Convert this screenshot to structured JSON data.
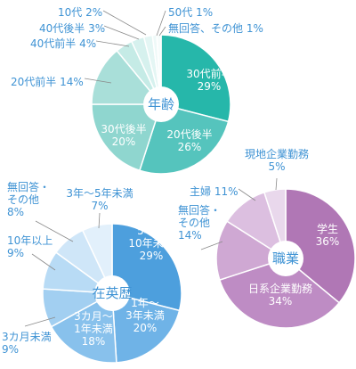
{
  "colors": {
    "text_label": "#3f93d4",
    "text_in_slice": "#ffffff",
    "leader_line": "#8a8a8a",
    "center_fill": "#ffffff"
  },
  "chart_data": [
    {
      "type": "pie",
      "title": "年齢",
      "slices": [
        {
          "label": "30代前半",
          "value": 29,
          "color": "#26b7aa",
          "label_position": "inside",
          "label_lines": [
            "30代前半",
            "29%"
          ]
        },
        {
          "label": "20代後半",
          "value": 26,
          "color": "#55c4bd",
          "label_position": "inside",
          "label_lines": [
            "20代後半",
            "26%"
          ]
        },
        {
          "label": "30代後半",
          "value": 20,
          "color": "#8fd6cf",
          "label_position": "inside",
          "label_lines": [
            "30代後半",
            "20%"
          ]
        },
        {
          "label": "20代前半",
          "value": 14,
          "color": "#a9dfd9",
          "label_position": "outside",
          "label_lines": [
            "20代前半 14%"
          ]
        },
        {
          "label": "40代前半",
          "value": 4,
          "color": "#c5ebe6",
          "label_position": "outside",
          "label_lines": [
            "40代前半 4%"
          ]
        },
        {
          "label": "40代後半",
          "value": 3,
          "color": "#d6f1ee",
          "label_position": "outside",
          "label_lines": [
            "40代後半 3%"
          ]
        },
        {
          "label": "10代",
          "value": 2,
          "color": "#e4f6f4",
          "label_position": "outside",
          "label_lines": [
            "10代 2%"
          ]
        },
        {
          "label": "50代",
          "value": 1,
          "color": "#eef9f8",
          "label_position": "outside",
          "label_lines": [
            "50代 1%"
          ]
        },
        {
          "label": "無回答、その他",
          "value": 1,
          "color": "#f6fcfb",
          "label_position": "outside",
          "label_lines": [
            "無回答、その他 1%"
          ]
        }
      ]
    },
    {
      "type": "pie",
      "title": "在英歴",
      "slices": [
        {
          "label": "5年～10年未満",
          "value": 29,
          "color": "#4d9fdd",
          "label_position": "inside",
          "label_lines": [
            "5年～",
            "10年未満",
            "29%"
          ]
        },
        {
          "label": "1年～3年未満",
          "value": 20,
          "color": "#6fb3e7",
          "label_position": "inside",
          "label_lines": [
            "1年～",
            "3年未満",
            "20%"
          ]
        },
        {
          "label": "3カ月～1年未満",
          "value": 18,
          "color": "#88c1ec",
          "label_position": "inside",
          "label_lines": [
            "3カ月～",
            "1年未満",
            "18%"
          ]
        },
        {
          "label": "3カ月未満",
          "value": 9,
          "color": "#a2cff1",
          "label_position": "outside",
          "label_lines": [
            "3カ月未満",
            "9%"
          ]
        },
        {
          "label": "10年以上",
          "value": 9,
          "color": "#b8dbf5",
          "label_position": "outside",
          "label_lines": [
            "10年以上",
            "9%"
          ]
        },
        {
          "label": "無回答・その他",
          "value": 8,
          "color": "#cfe6f8",
          "label_position": "outside",
          "label_lines": [
            "無回答・",
            "その他",
            "8%"
          ]
        },
        {
          "label": "3年～5年未満",
          "value": 7,
          "color": "#e2f0fb",
          "label_position": "outside",
          "label_lines": [
            "3年～5年未満",
            "7%"
          ]
        }
      ]
    },
    {
      "type": "pie",
      "title": "職業",
      "slices": [
        {
          "label": "学生",
          "value": 36,
          "color": "#b077b5",
          "label_position": "inside",
          "label_lines": [
            "学生",
            "36%"
          ]
        },
        {
          "label": "日系企業勤務",
          "value": 34,
          "color": "#be8cc4",
          "label_position": "inside",
          "label_lines": [
            "日系企業勤務",
            "34%"
          ]
        },
        {
          "label": "無回答・その他",
          "value": 14,
          "color": "#cfa8d3",
          "label_position": "outside",
          "label_lines": [
            "無回答・",
            "その他",
            "14%"
          ]
        },
        {
          "label": "主婦",
          "value": 11,
          "color": "#dcbfe0",
          "label_position": "outside",
          "label_lines": [
            "主婦 11%"
          ]
        },
        {
          "label": "現地企業勤務",
          "value": 5,
          "color": "#e9d8ec",
          "label_position": "outside",
          "label_lines": [
            "現地企業勤務",
            "5%"
          ]
        }
      ]
    }
  ]
}
